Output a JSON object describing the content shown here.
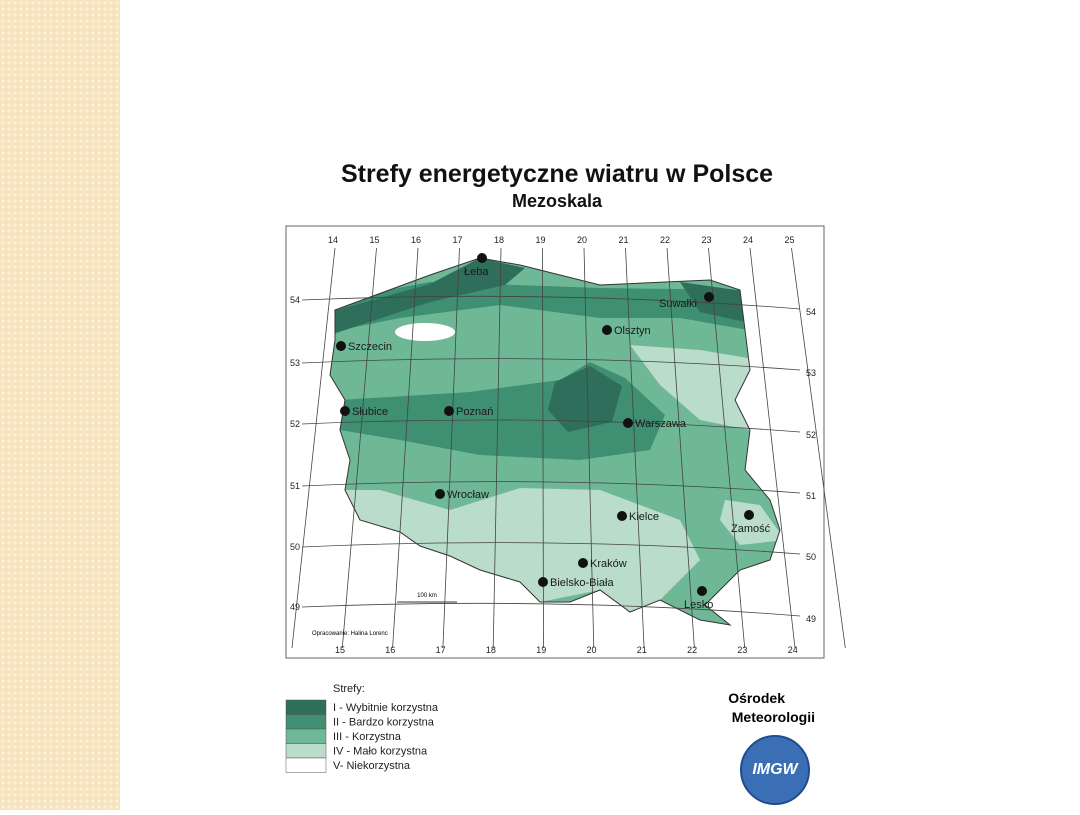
{
  "header": {
    "title": "Strefy energetyczne wiatru w Polsce",
    "subtitle": "Mezoskala"
  },
  "map": {
    "lon_top": [
      14,
      15,
      16,
      17,
      18,
      19,
      20,
      21,
      22,
      23,
      24,
      25
    ],
    "lon_bottom": [
      15,
      16,
      17,
      18,
      19,
      20,
      21,
      22,
      23,
      24
    ],
    "lat_left": [
      54,
      53,
      52,
      51,
      50,
      49
    ],
    "lat_right": [
      54,
      53,
      52,
      51,
      50,
      49
    ],
    "cities": [
      "Łeba",
      "Suwałki",
      "Olsztyn",
      "Szczecin",
      "Słubice",
      "Poznań",
      "Warszawa",
      "Wrocław",
      "Kielce",
      "Zamość",
      "Kraków",
      "Bielsko-Biała",
      "Lesko"
    ],
    "scale": "100 km",
    "credit": "Opracowanie: Halina Lorenc"
  },
  "legend": {
    "title": "Strefy:",
    "items": [
      "I  -  Wybitnie korzystna",
      "II -  Bardzo korzystna",
      "III - Korzystna",
      "IV - Mało korzystna",
      "V-   Niekorzystna"
    ]
  },
  "institution": {
    "name_line1": "Ośrodek",
    "name_line2": "Meteorologii",
    "logo": "IMGW"
  }
}
